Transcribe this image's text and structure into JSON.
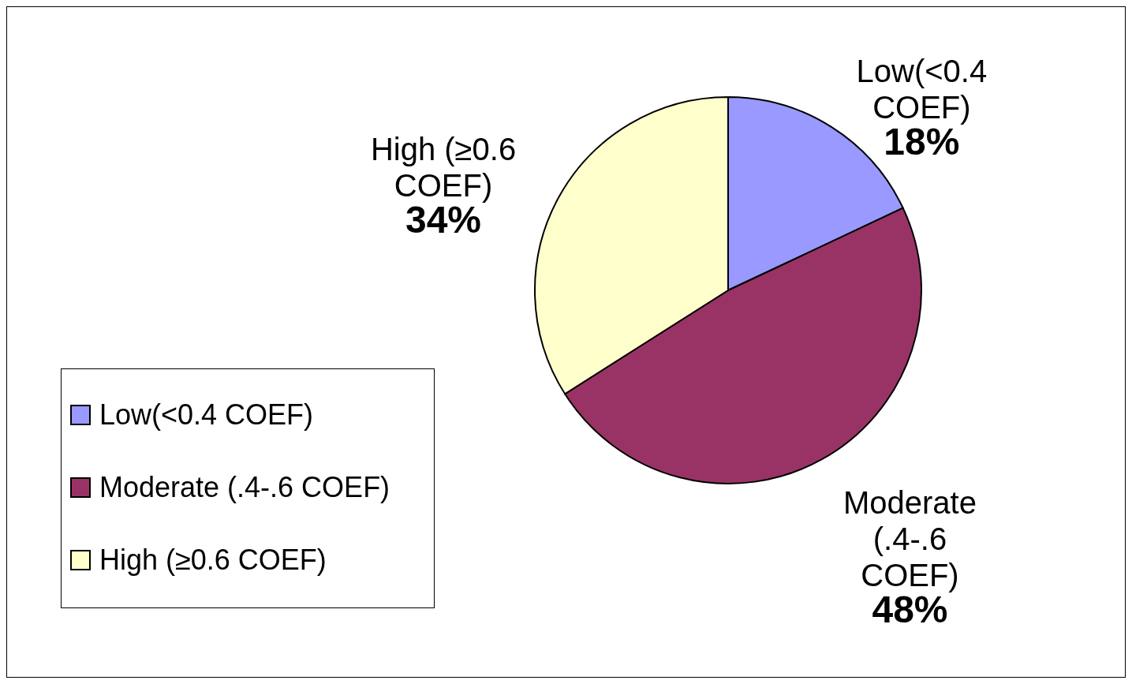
{
  "chart_data": {
    "type": "pie",
    "categories": [
      "Low(<0.4 COEF)",
      "Moderate (.4-.6 COEF)",
      "High (≥0.6 COEF)"
    ],
    "values": [
      18,
      48,
      34
    ],
    "colors": [
      "#9999ff",
      "#993366",
      "#ffffcc"
    ],
    "value_labels": [
      "18%",
      "48%",
      "34%"
    ],
    "legend": "left"
  }
}
